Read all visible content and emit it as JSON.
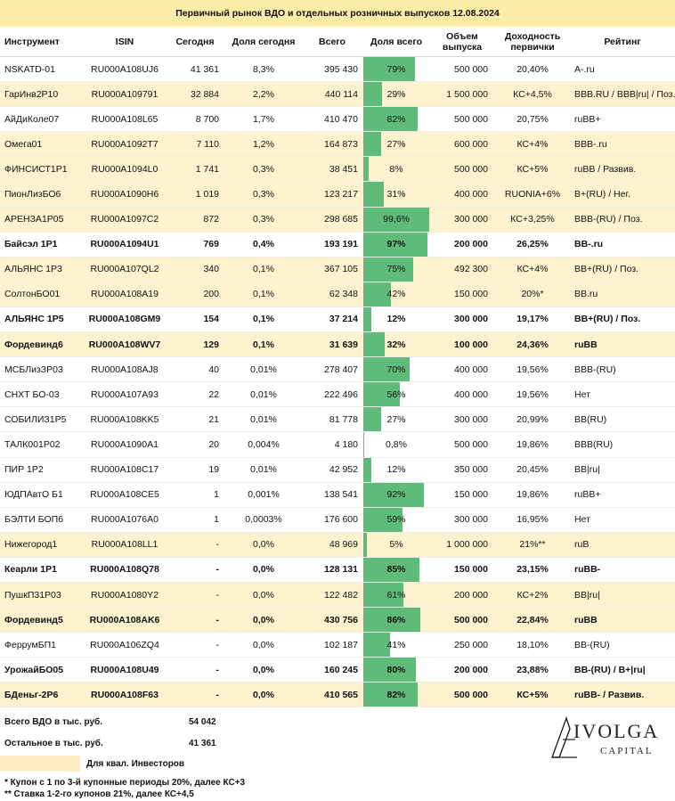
{
  "title": "Первичный рынок ВДО и отдельных розничных выпусков 12.08.2024",
  "headers": {
    "name": "Инструмент",
    "isin": "ISIN",
    "today": "Сегодня",
    "today_share": "Доля сегодня",
    "total": "Всего",
    "total_share": "Доля всего",
    "volume": "Объем выпуска",
    "yield": "Доходность первички",
    "rating": "Рейтинг"
  },
  "rows": [
    {
      "name": "NSKATD-01",
      "isin": "RU000A108UJ6",
      "today": "41 361",
      "today_share": "8,3%",
      "total": "395 430",
      "share_label": "79%",
      "share": 0.79,
      "volume": "500 000",
      "yield": "20,40%",
      "rating": "A-.ru",
      "hl": false,
      "bold": false
    },
    {
      "name": "ГарИнв2Р10",
      "isin": "RU000A109791",
      "today": "32 884",
      "today_share": "2,2%",
      "total": "440 114",
      "share_label": "29%",
      "share": 0.29,
      "volume": "1 500 000",
      "yield": "КС+4,5%",
      "rating": "BBB.RU / BBB|ru| / Поз.",
      "hl": true,
      "bold": false
    },
    {
      "name": "АйДиКоле07",
      "isin": "RU000A108L65",
      "today": "8 700",
      "today_share": "1,7%",
      "total": "410 470",
      "share_label": "82%",
      "share": 0.82,
      "volume": "500 000",
      "yield": "20,75%",
      "rating": "ruBB+",
      "hl": false,
      "bold": false
    },
    {
      "name": "Омега01",
      "isin": "RU000A1092T7",
      "today": "7 110",
      "today_share": "1,2%",
      "total": "164 873",
      "share_label": "27%",
      "share": 0.27,
      "volume": "600 000",
      "yield": "КС+4%",
      "rating": "BBB-.ru",
      "hl": true,
      "bold": false
    },
    {
      "name": "ФИНСИСТ1Р1",
      "isin": "RU000A1094L0",
      "today": "1 741",
      "today_share": "0,3%",
      "total": "38 451",
      "share_label": "8%",
      "share": 0.08,
      "volume": "500 000",
      "yield": "КС+5%",
      "rating": "ruBB / Развив.",
      "hl": true,
      "bold": false
    },
    {
      "name": "ПионЛизБО6",
      "isin": "RU000A1090H6",
      "today": "1 019",
      "today_share": "0,3%",
      "total": "123 217",
      "share_label": "31%",
      "share": 0.31,
      "volume": "400 000",
      "yield": "RUONIA+6%",
      "rating": "B+(RU) / Нег.",
      "hl": true,
      "bold": false
    },
    {
      "name": "АРЕНЗА1Р05",
      "isin": "RU000A1097C2",
      "today": "872",
      "today_share": "0,3%",
      "total": "298 685",
      "share_label": "99,6%",
      "share": 0.996,
      "volume": "300 000",
      "yield": "КС+3,25%",
      "rating": "BBB-(RU) / Поз.",
      "hl": true,
      "bold": false
    },
    {
      "name": "Байсэл 1Р1",
      "isin": "RU000A1094U1",
      "today": "769",
      "today_share": "0,4%",
      "total": "193 191",
      "share_label": "97%",
      "share": 0.97,
      "volume": "200 000",
      "yield": "26,25%",
      "rating": "BB-.ru",
      "hl": false,
      "bold": true
    },
    {
      "name": "АЛЬЯНС 1Р3",
      "isin": "RU000A107QL2",
      "today": "340",
      "today_share": "0,1%",
      "total": "367 105",
      "share_label": "75%",
      "share": 0.75,
      "volume": "492 300",
      "yield": "КС+4%",
      "rating": "BB+(RU) / Поз.",
      "hl": true,
      "bold": false
    },
    {
      "name": "СолтонБО01",
      "isin": "RU000A108A19",
      "today": "200",
      "today_share": "0,1%",
      "total": "62 348",
      "share_label": "42%",
      "share": 0.42,
      "volume": "150 000",
      "yield": "20%*",
      "rating": "BB.ru",
      "hl": true,
      "bold": false
    },
    {
      "name": "АЛЬЯНС 1Р5",
      "isin": "RU000A108GM9",
      "today": "154",
      "today_share": "0,1%",
      "total": "37 214",
      "share_label": "12%",
      "share": 0.12,
      "volume": "300 000",
      "yield": "19,17%",
      "rating": "BB+(RU) / Поз.",
      "hl": false,
      "bold": true
    },
    {
      "name": "Фордевинд6",
      "isin": "RU000A108WV7",
      "today": "129",
      "today_share": "0,1%",
      "total": "31 639",
      "share_label": "32%",
      "share": 0.32,
      "volume": "100 000",
      "yield": "24,36%",
      "rating": "ruBB",
      "hl": true,
      "bold": true
    },
    {
      "name": "МСБЛизЗР03",
      "isin": "RU000A108AJ8",
      "today": "40",
      "today_share": "0,01%",
      "total": "278 407",
      "share_label": "70%",
      "share": 0.7,
      "volume": "400 000",
      "yield": "19,56%",
      "rating": "BBB-(RU)",
      "hl": false,
      "bold": false
    },
    {
      "name": "СНХТ БО-03",
      "isin": "RU000A107A93",
      "today": "22",
      "today_share": "0,01%",
      "total": "222 496",
      "share_label": "56%",
      "share": 0.56,
      "volume": "400 000",
      "yield": "19,56%",
      "rating": "Нет",
      "hl": false,
      "bold": false
    },
    {
      "name": "СОБИЛИЗ1Р5",
      "isin": "RU000A108KK5",
      "today": "21",
      "today_share": "0,01%",
      "total": "81 778",
      "share_label": "27%",
      "share": 0.27,
      "volume": "300 000",
      "yield": "20,99%",
      "rating": "BB(RU)",
      "hl": false,
      "bold": false
    },
    {
      "name": "ТАЛК001Р02",
      "isin": "RU000A1090A1",
      "today": "20",
      "today_share": "0,004%",
      "total": "4 180",
      "share_label": "0,8%",
      "share": 0.008,
      "volume": "500 000",
      "yield": "19,86%",
      "rating": "BBB(RU)",
      "hl": false,
      "bold": false
    },
    {
      "name": "ПИР 1Р2",
      "isin": "RU000A108C17",
      "today": "19",
      "today_share": "0,01%",
      "total": "42 952",
      "share_label": "12%",
      "share": 0.12,
      "volume": "350 000",
      "yield": "20,45%",
      "rating": "BB|ru|",
      "hl": false,
      "bold": false
    },
    {
      "name": "ЮДПАвтО Б1",
      "isin": "RU000A108CE5",
      "today": "1",
      "today_share": "0,001%",
      "total": "138 541",
      "share_label": "92%",
      "share": 0.92,
      "volume": "150 000",
      "yield": "19,86%",
      "rating": "ruBB+",
      "hl": false,
      "bold": false
    },
    {
      "name": "БЭЛТИ БОП6",
      "isin": "RU000A1076A0",
      "today": "1",
      "today_share": "0,0003%",
      "total": "176 600",
      "share_label": "59%",
      "share": 0.59,
      "volume": "300 000",
      "yield": "16,95%",
      "rating": "Нет",
      "hl": false,
      "bold": false
    },
    {
      "name": "Нижегород1",
      "isin": "RU000A108LL1",
      "today": "-",
      "today_share": "0,0%",
      "total": "48 969",
      "share_label": "5%",
      "share": 0.05,
      "volume": "1 000 000",
      "yield": "21%**",
      "rating": "ruB",
      "hl": true,
      "bold": false
    },
    {
      "name": "Кеарли 1Р1",
      "isin": "RU000A108Q78",
      "today": "-",
      "today_share": "0,0%",
      "total": "128 131",
      "share_label": "85%",
      "share": 0.85,
      "volume": "150 000",
      "yield": "23,15%",
      "rating": "ruBB-",
      "hl": false,
      "bold": true
    },
    {
      "name": "ПушкП31Р03",
      "isin": "RU000A1080Y2",
      "today": "-",
      "today_share": "0,0%",
      "total": "122 482",
      "share_label": "61%",
      "share": 0.61,
      "volume": "200 000",
      "yield": "КС+2%",
      "rating": "BB|ru|",
      "hl": true,
      "bold": false
    },
    {
      "name": "Фордевинд5",
      "isin": "RU000A108AK6",
      "today": "-",
      "today_share": "0,0%",
      "total": "430 756",
      "share_label": "86%",
      "share": 0.86,
      "volume": "500 000",
      "yield": "22,84%",
      "rating": "ruBB",
      "hl": true,
      "bold": true
    },
    {
      "name": "ФеррумБП1",
      "isin": "RU000A106ZQ4",
      "today": "-",
      "today_share": "0,0%",
      "total": "102 187",
      "share_label": "41%",
      "share": 0.41,
      "volume": "250 000",
      "yield": "18,10%",
      "rating": "BB-(RU)",
      "hl": false,
      "bold": false
    },
    {
      "name": "УрожайБО05",
      "isin": "RU000A108U49",
      "today": "-",
      "today_share": "0,0%",
      "total": "160 245",
      "share_label": "80%",
      "share": 0.8,
      "volume": "200 000",
      "yield": "23,88%",
      "rating": "BB-(RU) / B+|ru|",
      "hl": false,
      "bold": true
    },
    {
      "name": "БДеньг-2Р6",
      "isin": "RU000A108F63",
      "today": "-",
      "today_share": "0,0%",
      "total": "410 565",
      "share_label": "82%",
      "share": 0.82,
      "volume": "500 000",
      "yield": "КС+5%",
      "rating": "ruBB- / Развив.",
      "hl": true,
      "bold": true
    }
  ],
  "summary": {
    "vdo_label": "Всего ВДО в тыс. руб.",
    "vdo_value": "54 042",
    "other_label": "Остальное в тыс. руб.",
    "other_value": "41 361",
    "legend_label": "Для квал. Инвесторов"
  },
  "notes": {
    "n1": "* Купон с 1 по 3-й купонные периоды 20%, далее КС+3",
    "n2": "** Ставка 1-2-го купонов 21%, далее КС+4,5"
  },
  "logo": {
    "name": "IVOLGA",
    "sub": "CAPITAL"
  },
  "colors": {
    "highlight": "#fdf3cf",
    "bar": "#5fbb7a",
    "title_bg": "#fdeba8"
  }
}
